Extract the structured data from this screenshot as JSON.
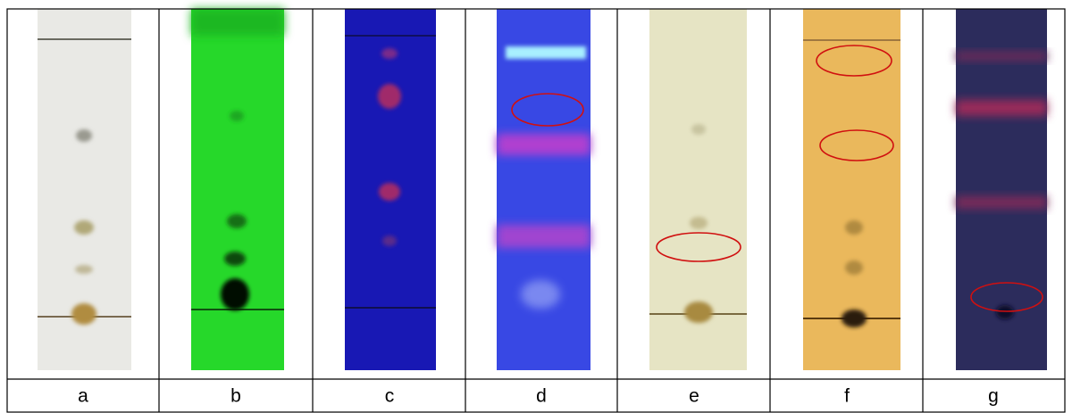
{
  "table": {
    "labels": [
      "a",
      "b",
      "c",
      "d",
      "e",
      "f",
      "g"
    ]
  }
}
